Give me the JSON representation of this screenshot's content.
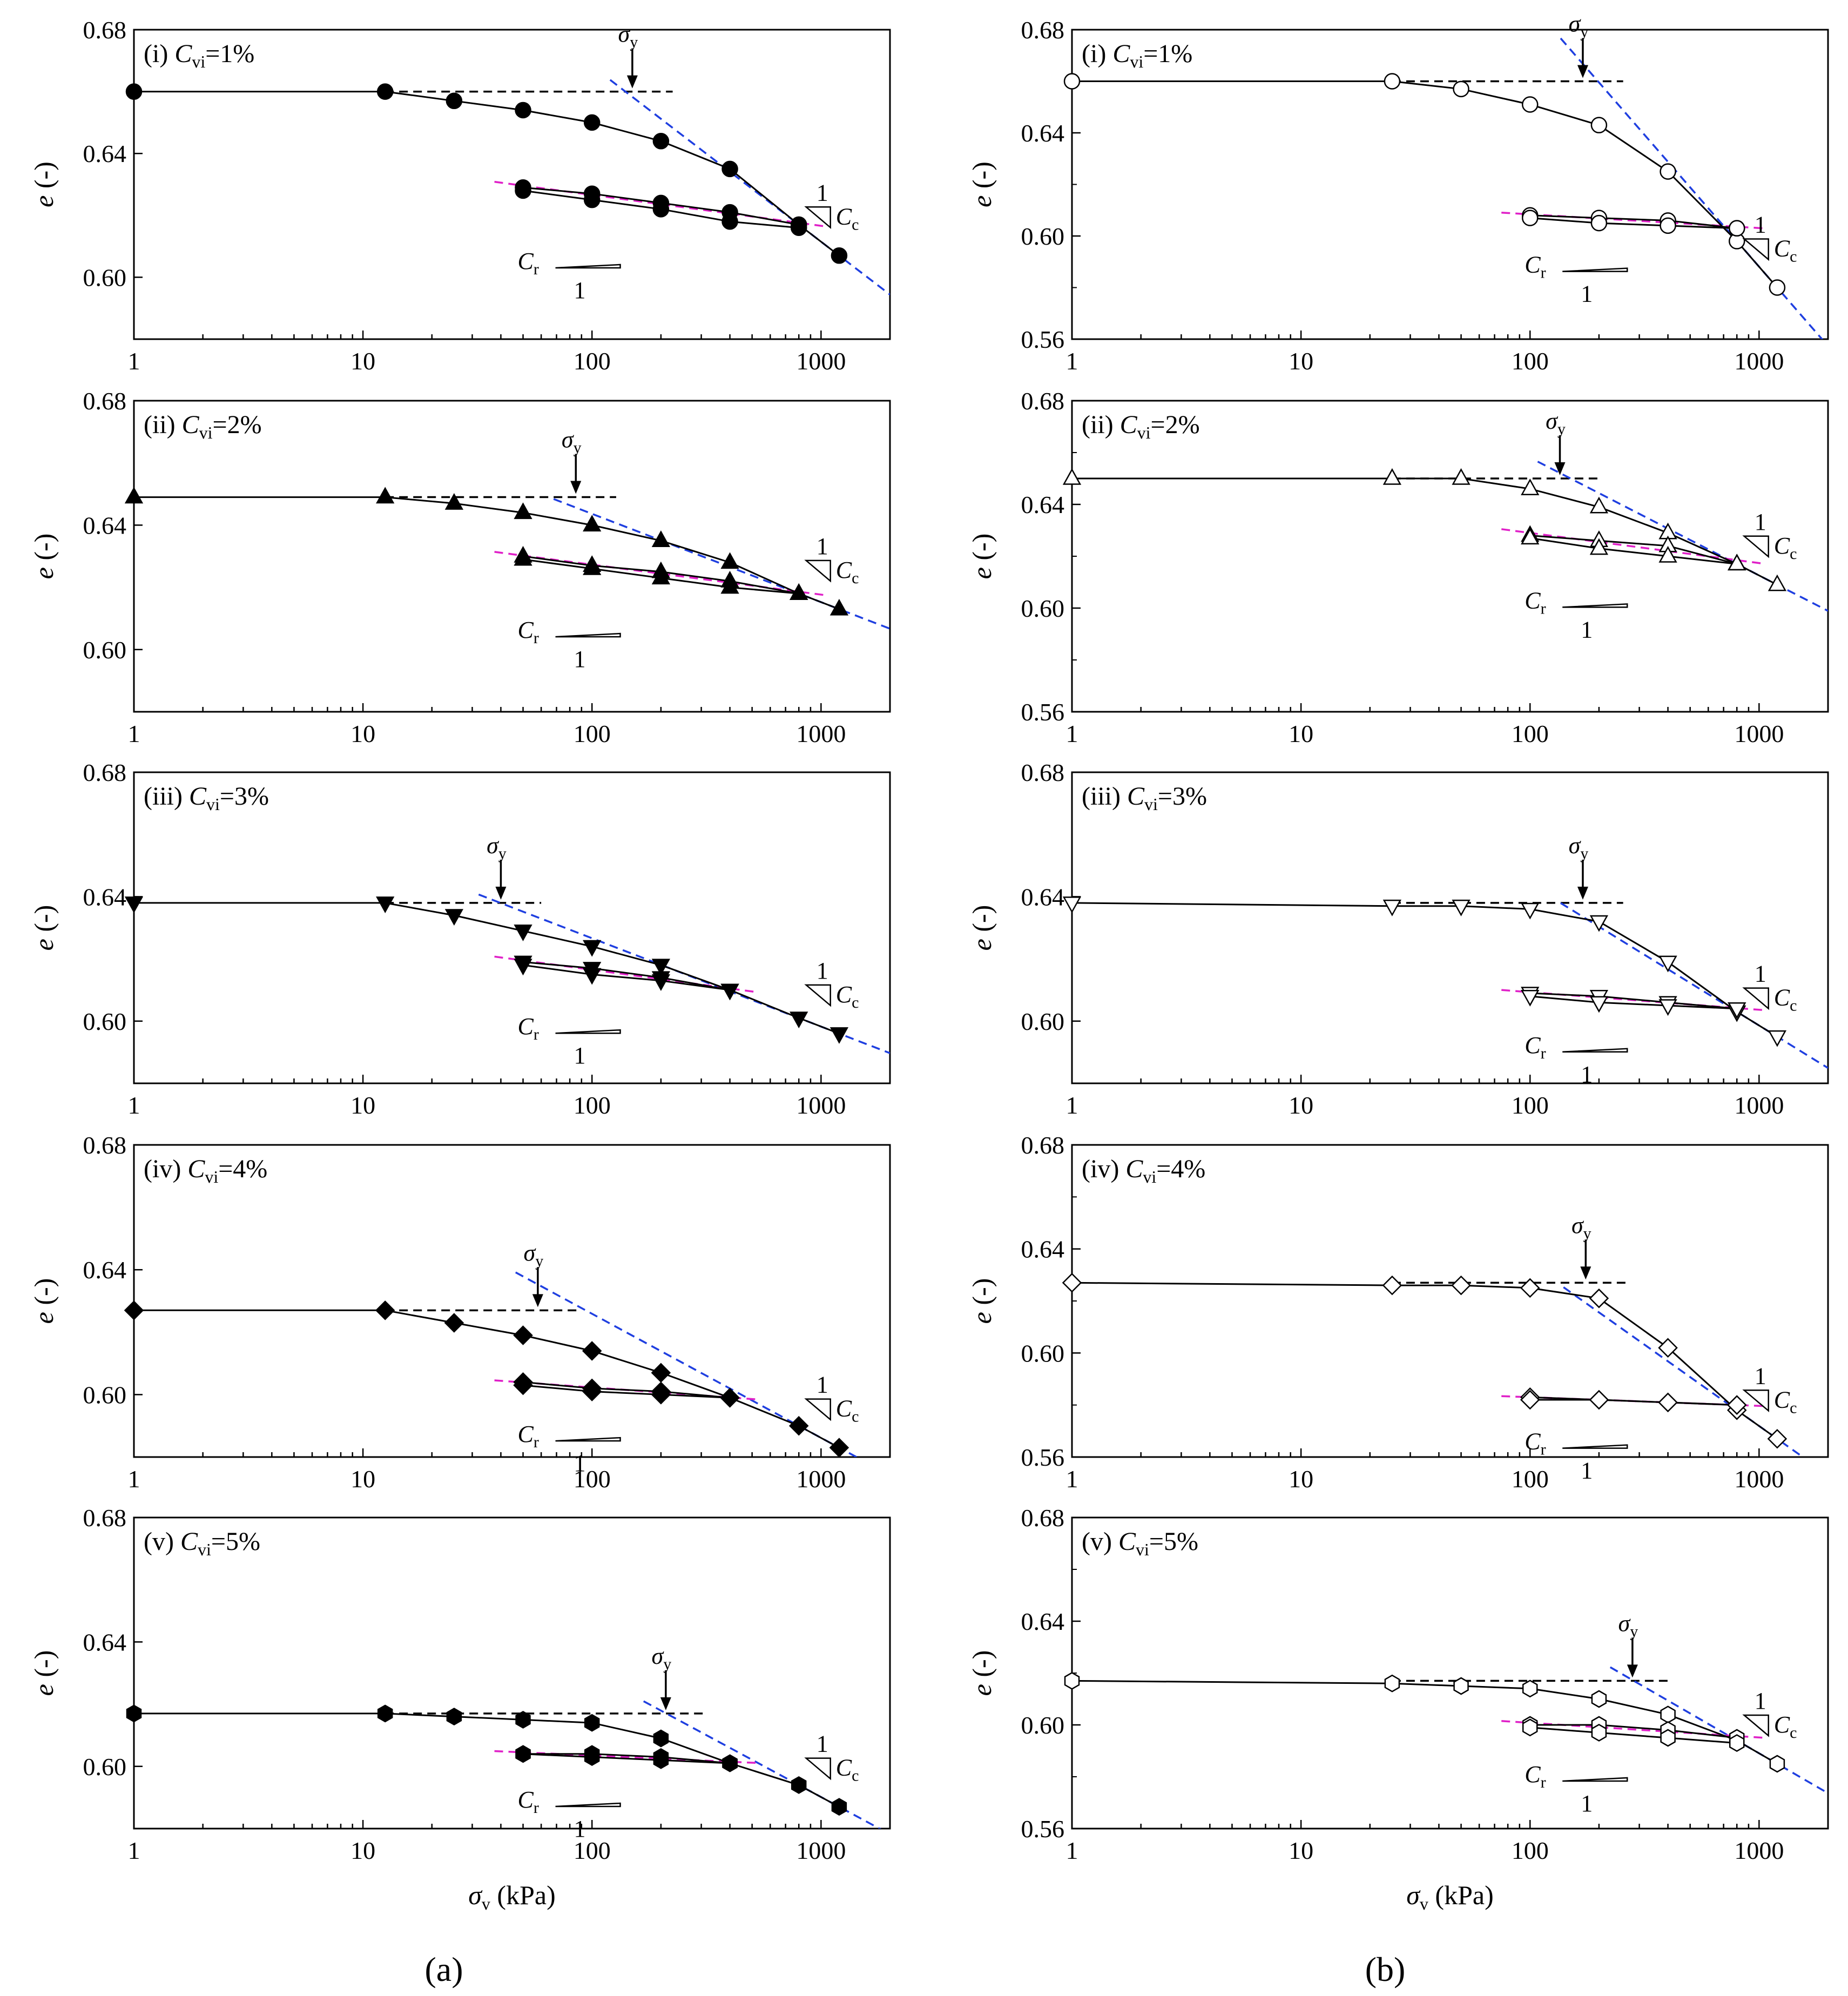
{
  "figure_labels": {
    "a": "(a)",
    "b": "(b)"
  },
  "chart_data": [
    {
      "id": "a1",
      "type": "scatter",
      "title": "(i) Cvi=1%",
      "xscale": "log",
      "xlim": [
        1,
        2000
      ],
      "ylim": [
        0.58,
        0.68
      ],
      "yticks": [
        "0.68",
        "0.64",
        "0.60"
      ],
      "xticks": [
        "1",
        "10",
        "100",
        "1000"
      ],
      "ylabel": "e (-)",
      "xlabel": "",
      "marker": "circle",
      "filled": true,
      "series": [
        {
          "name": "loading",
          "x": [
            1,
            12.5,
            25,
            50,
            100,
            200,
            400,
            800,
            1200
          ],
          "y": [
            0.66,
            0.66,
            0.657,
            0.654,
            0.65,
            0.644,
            0.635,
            0.617,
            0.607
          ]
        },
        {
          "name": "unloading",
          "x": [
            800,
            400,
            200,
            100,
            50
          ],
          "y": [
            0.617,
            0.621,
            0.624,
            0.627,
            0.629
          ]
        },
        {
          "name": "reloading",
          "x": [
            50,
            100,
            200,
            400,
            800
          ],
          "y": [
            0.628,
            0.625,
            0.622,
            0.618,
            0.616
          ]
        }
      ],
      "sigma_y": 150,
      "annotations": {
        "sigma": "σ",
        "sigma_sub": "y",
        "cr": "C",
        "cr_sub": "r",
        "cc": "C",
        "cc_sub": "c",
        "one": "1"
      }
    },
    {
      "id": "a2",
      "type": "scatter",
      "title": "(ii) Cvi=2%",
      "xscale": "log",
      "xlim": [
        1,
        2000
      ],
      "ylim": [
        0.58,
        0.68
      ],
      "yticks": [
        "0.68",
        "0.64",
        "0.60"
      ],
      "xticks": [
        "1",
        "10",
        "100",
        "1000"
      ],
      "ylabel": "e (-)",
      "xlabel": "",
      "marker": "triangle-up",
      "filled": true,
      "series": [
        {
          "name": "loading",
          "x": [
            1,
            12.5,
            25,
            50,
            100,
            200,
            400,
            800,
            1200
          ],
          "y": [
            0.649,
            0.649,
            0.647,
            0.644,
            0.64,
            0.635,
            0.628,
            0.618,
            0.613
          ]
        },
        {
          "name": "unloading",
          "x": [
            800,
            400,
            200,
            100,
            50
          ],
          "y": [
            0.618,
            0.622,
            0.625,
            0.627,
            0.63
          ]
        },
        {
          "name": "reloading",
          "x": [
            50,
            100,
            200,
            400,
            800
          ],
          "y": [
            0.629,
            0.626,
            0.623,
            0.62,
            0.618
          ]
        }
      ],
      "sigma_y": 85,
      "annotations": {
        "sigma": "σ",
        "sigma_sub": "y",
        "cr": "C",
        "cr_sub": "r",
        "cc": "C",
        "cc_sub": "c",
        "one": "1"
      }
    },
    {
      "id": "a3",
      "type": "scatter",
      "title": "(iii) Cvi=3%",
      "xscale": "log",
      "xlim": [
        1,
        2000
      ],
      "ylim": [
        0.58,
        0.68
      ],
      "yticks": [
        "0.68",
        "0.64",
        "0.60"
      ],
      "xticks": [
        "1",
        "10",
        "100",
        "1000"
      ],
      "ylabel": "e (-)",
      "xlabel": "",
      "marker": "triangle-down",
      "filled": true,
      "series": [
        {
          "name": "loading",
          "x": [
            1,
            12.5,
            25,
            50,
            100,
            200,
            400,
            800,
            1200
          ],
          "y": [
            0.638,
            0.638,
            0.634,
            0.629,
            0.624,
            0.618,
            0.61,
            0.601,
            0.596
          ]
        },
        {
          "name": "unloading",
          "x": [
            400,
            200,
            100,
            50
          ],
          "y": [
            0.61,
            0.614,
            0.617,
            0.619
          ]
        },
        {
          "name": "reloading",
          "x": [
            50,
            100,
            200,
            400
          ],
          "y": [
            0.618,
            0.615,
            0.613,
            0.61
          ]
        }
      ],
      "sigma_y": 40,
      "annotations": {
        "sigma": "σ",
        "sigma_sub": "y",
        "cr": "C",
        "cr_sub": "r",
        "cc": "C",
        "cc_sub": "c",
        "one": "1"
      }
    },
    {
      "id": "a4",
      "type": "scatter",
      "title": "(iv) Cvi=4%",
      "xscale": "log",
      "xlim": [
        1,
        2000
      ],
      "ylim": [
        0.58,
        0.68
      ],
      "yticks": [
        "0.68",
        "0.64",
        "0.60"
      ],
      "xticks": [
        "1",
        "10",
        "100",
        "1000"
      ],
      "ylabel": "e (-)",
      "xlabel": "",
      "marker": "diamond",
      "filled": true,
      "series": [
        {
          "name": "loading",
          "x": [
            1,
            12.5,
            25,
            50,
            100,
            200,
            400,
            800,
            1200
          ],
          "y": [
            0.627,
            0.627,
            0.623,
            0.619,
            0.614,
            0.607,
            0.599,
            0.59,
            0.583
          ]
        },
        {
          "name": "unloading",
          "x": [
            400,
            200,
            100,
            50
          ],
          "y": [
            0.599,
            0.601,
            0.602,
            0.604
          ]
        },
        {
          "name": "reloading",
          "x": [
            50,
            100,
            200,
            400
          ],
          "y": [
            0.603,
            0.601,
            0.6,
            0.599
          ]
        }
      ],
      "sigma_y": 58,
      "annotations": {
        "sigma": "σ",
        "sigma_sub": "y",
        "cr": "C",
        "cr_sub": "r",
        "cc": "C",
        "cc_sub": "c",
        "one": "1"
      }
    },
    {
      "id": "a5",
      "type": "scatter",
      "title": "(v) Cvi=5%",
      "xscale": "log",
      "xlim": [
        1,
        2000
      ],
      "ylim": [
        0.58,
        0.68
      ],
      "yticks": [
        "0.68",
        "0.64",
        "0.60"
      ],
      "xticks": [
        "1",
        "10",
        "100",
        "1000"
      ],
      "ylabel": "e (-)",
      "xlabel": "σv (kPa)",
      "marker": "hexagon",
      "filled": true,
      "series": [
        {
          "name": "loading",
          "x": [
            1,
            12.5,
            25,
            50,
            100,
            200,
            400,
            800,
            1200
          ],
          "y": [
            0.617,
            0.617,
            0.616,
            0.615,
            0.614,
            0.609,
            0.601,
            0.594,
            0.587
          ]
        },
        {
          "name": "unloading",
          "x": [
            400,
            200,
            100,
            50
          ],
          "y": [
            0.601,
            0.603,
            0.604,
            0.604
          ]
        },
        {
          "name": "reloading",
          "x": [
            50,
            100,
            200,
            400
          ],
          "y": [
            0.604,
            0.603,
            0.602,
            0.601
          ]
        }
      ],
      "sigma_y": 210,
      "annotations": {
        "sigma": "σ",
        "sigma_sub": "y",
        "cr": "C",
        "cr_sub": "r",
        "cc": "C",
        "cc_sub": "c",
        "one": "1"
      }
    },
    {
      "id": "b1",
      "type": "scatter",
      "title": "(i) Cvi=1%",
      "xscale": "log",
      "xlim": [
        1,
        2000
      ],
      "ylim": [
        0.56,
        0.68
      ],
      "yticks": [
        "0.68",
        "0.64",
        "0.60",
        "0.56"
      ],
      "xticks": [
        "1",
        "10",
        "100",
        "1000"
      ],
      "ylabel": "e (-)",
      "xlabel": "",
      "marker": "circle",
      "filled": false,
      "series": [
        {
          "name": "loading",
          "x": [
            1,
            25,
            50,
            100,
            200,
            400,
            800,
            1200
          ],
          "y": [
            0.66,
            0.66,
            0.657,
            0.651,
            0.643,
            0.625,
            0.598,
            0.58
          ]
        },
        {
          "name": "unloading",
          "x": [
            800,
            400,
            200,
            100
          ],
          "y": [
            0.603,
            0.606,
            0.607,
            0.608
          ]
        },
        {
          "name": "reloading",
          "x": [
            100,
            200,
            400,
            800
          ],
          "y": [
            0.607,
            0.605,
            0.604,
            0.603
          ]
        }
      ],
      "sigma_y": 170,
      "annotations": {
        "sigma": "σ",
        "sigma_sub": "y",
        "cr": "C",
        "cr_sub": "r",
        "cc": "C",
        "cc_sub": "c",
        "one": "1"
      }
    },
    {
      "id": "b2",
      "type": "scatter",
      "title": "(ii) Cvi=2%",
      "xscale": "log",
      "xlim": [
        1,
        2000
      ],
      "ylim": [
        0.56,
        0.68
      ],
      "yticks": [
        "0.68",
        "0.64",
        "0.60",
        "0.56"
      ],
      "xticks": [
        "1",
        "10",
        "100",
        "1000"
      ],
      "ylabel": "e (-)",
      "xlabel": "",
      "marker": "triangle-up",
      "filled": false,
      "series": [
        {
          "name": "loading",
          "x": [
            1,
            25,
            50,
            100,
            200,
            400,
            800,
            1200
          ],
          "y": [
            0.65,
            0.65,
            0.65,
            0.646,
            0.639,
            0.629,
            0.617,
            0.609
          ]
        },
        {
          "name": "unloading",
          "x": [
            800,
            400,
            200,
            100
          ],
          "y": [
            0.617,
            0.624,
            0.626,
            0.628
          ]
        },
        {
          "name": "reloading",
          "x": [
            100,
            200,
            400,
            800
          ],
          "y": [
            0.627,
            0.623,
            0.62,
            0.617
          ]
        }
      ],
      "sigma_y": 135,
      "annotations": {
        "sigma": "σ",
        "sigma_sub": "y",
        "cr": "C",
        "cr_sub": "r",
        "cc": "C",
        "cc_sub": "c",
        "one": "1"
      }
    },
    {
      "id": "b3",
      "type": "scatter",
      "title": "(iii) Cvi=3%",
      "xscale": "log",
      "xlim": [
        1,
        2000
      ],
      "ylim": [
        0.58,
        0.68
      ],
      "yticks": [
        "0.68",
        "0.64",
        "0.60"
      ],
      "xticks": [
        "1",
        "10",
        "100",
        "1000"
      ],
      "ylabel": "e (-)",
      "xlabel": "",
      "marker": "triangle-down",
      "filled": false,
      "series": [
        {
          "name": "loading",
          "x": [
            1,
            25,
            50,
            100,
            200,
            400,
            800,
            1200
          ],
          "y": [
            0.638,
            0.637,
            0.637,
            0.636,
            0.632,
            0.619,
            0.603,
            0.595
          ]
        },
        {
          "name": "unloading",
          "x": [
            800,
            400,
            200,
            100
          ],
          "y": [
            0.604,
            0.606,
            0.608,
            0.609
          ]
        },
        {
          "name": "reloading",
          "x": [
            100,
            200,
            400,
            800
          ],
          "y": [
            0.608,
            0.606,
            0.605,
            0.604
          ]
        }
      ],
      "sigma_y": 170,
      "annotations": {
        "sigma": "σ",
        "sigma_sub": "y",
        "cr": "C",
        "cr_sub": "r",
        "cc": "C",
        "cc_sub": "c",
        "one": "1"
      }
    },
    {
      "id": "b4",
      "type": "scatter",
      "title": "(iv) Cvi=4%",
      "xscale": "log",
      "xlim": [
        1,
        2000
      ],
      "ylim": [
        0.56,
        0.68
      ],
      "yticks": [
        "0.68",
        "0.64",
        "0.60",
        "0.56"
      ],
      "xticks": [
        "1",
        "10",
        "100",
        "1000"
      ],
      "ylabel": "e (-)",
      "xlabel": "",
      "marker": "diamond",
      "filled": false,
      "series": [
        {
          "name": "loading",
          "x": [
            1,
            25,
            50,
            100,
            200,
            400,
            800,
            1200
          ],
          "y": [
            0.627,
            0.626,
            0.626,
            0.625,
            0.621,
            0.602,
            0.578,
            0.567
          ]
        },
        {
          "name": "unloading",
          "x": [
            800,
            400,
            200,
            100
          ],
          "y": [
            0.58,
            0.581,
            0.582,
            0.583
          ]
        },
        {
          "name": "reloading",
          "x": [
            100,
            200,
            400,
            800
          ],
          "y": [
            0.582,
            0.582,
            0.581,
            0.58
          ]
        }
      ],
      "sigma_y": 175,
      "annotations": {
        "sigma": "σ",
        "sigma_sub": "y",
        "cr": "C",
        "cr_sub": "r",
        "cc": "C",
        "cc_sub": "c",
        "one": "1"
      }
    },
    {
      "id": "b5",
      "type": "scatter",
      "title": "(v) Cvi=5%",
      "xscale": "log",
      "xlim": [
        1,
        2000
      ],
      "ylim": [
        0.56,
        0.68
      ],
      "yticks": [
        "0.68",
        "0.64",
        "0.60",
        "0.56"
      ],
      "xticks": [
        "1",
        "10",
        "100",
        "1000"
      ],
      "ylabel": "e (-)",
      "xlabel": "σv (kPa)",
      "marker": "hexagon",
      "filled": false,
      "series": [
        {
          "name": "loading",
          "x": [
            1,
            25,
            50,
            100,
            200,
            400,
            800,
            1200
          ],
          "y": [
            0.617,
            0.616,
            0.615,
            0.614,
            0.61,
            0.604,
            0.594,
            0.585
          ]
        },
        {
          "name": "unloading",
          "x": [
            800,
            400,
            200,
            100
          ],
          "y": [
            0.595,
            0.598,
            0.6,
            0.6
          ]
        },
        {
          "name": "reloading",
          "x": [
            100,
            200,
            400,
            800
          ],
          "y": [
            0.599,
            0.597,
            0.595,
            0.593
          ]
        }
      ],
      "sigma_y": 280,
      "annotations": {
        "sigma": "σ",
        "sigma_sub": "y",
        "cr": "C",
        "cr_sub": "r",
        "cc": "C",
        "cc_sub": "c",
        "one": "1"
      }
    }
  ]
}
